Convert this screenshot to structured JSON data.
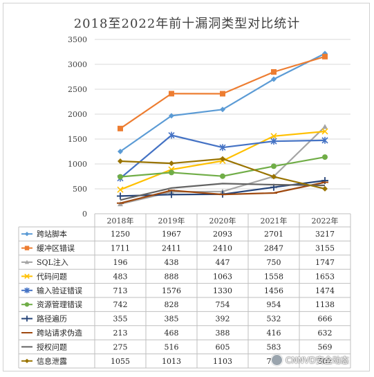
{
  "chart_data": {
    "type": "line",
    "title": "2018至2022年前十漏洞类型对比统计",
    "categories": [
      "2018年",
      "2019年",
      "2020年",
      "2021年",
      "2022年"
    ],
    "ylim": [
      0,
      3500
    ],
    "yticks": [
      0,
      500,
      1000,
      1500,
      2000,
      2500,
      3000,
      3500
    ],
    "grid": true,
    "legend": "data-table-below",
    "series": [
      {
        "name": "跨站脚本",
        "values": [
          1250,
          1967,
          2093,
          2701,
          3217
        ],
        "color": "#5b9bd5",
        "marker": "diamond"
      },
      {
        "name": "缓冲区错误",
        "values": [
          1711,
          2411,
          2410,
          2847,
          3155
        ],
        "color": "#ed7d31",
        "marker": "square"
      },
      {
        "name": "SQL注入",
        "values": [
          196,
          438,
          447,
          750,
          1747
        ],
        "color": "#a5a5a5",
        "marker": "triangle"
      },
      {
        "name": "代码问题",
        "values": [
          483,
          888,
          1063,
          1558,
          1653
        ],
        "color": "#ffc000",
        "marker": "x"
      },
      {
        "name": "输入验证错误",
        "values": [
          713,
          1576,
          1330,
          1456,
          1474
        ],
        "color": "#4472c4",
        "marker": "star"
      },
      {
        "name": "资源管理错误",
        "values": [
          742,
          828,
          754,
          954,
          1138
        ],
        "color": "#70ad47",
        "marker": "circle"
      },
      {
        "name": "路径遍历",
        "values": [
          355,
          385,
          392,
          532,
          666
        ],
        "color": "#264478",
        "marker": "plus"
      },
      {
        "name": "跨站请求伪造",
        "values": [
          213,
          468,
          388,
          416,
          632
        ],
        "color": "#9e480e",
        "marker": "dash"
      },
      {
        "name": "授权问题",
        "values": [
          275,
          516,
          605,
          583,
          569
        ],
        "color": "#636363",
        "marker": "none"
      },
      {
        "name": "信息泄露",
        "values": [
          1055,
          1013,
          1103,
          745,
          502
        ],
        "color": "#997300",
        "marker": "diamond"
      }
    ]
  },
  "watermark": {
    "text": "CNNVD安全动态",
    "icon": "wechat-logo-icon"
  }
}
